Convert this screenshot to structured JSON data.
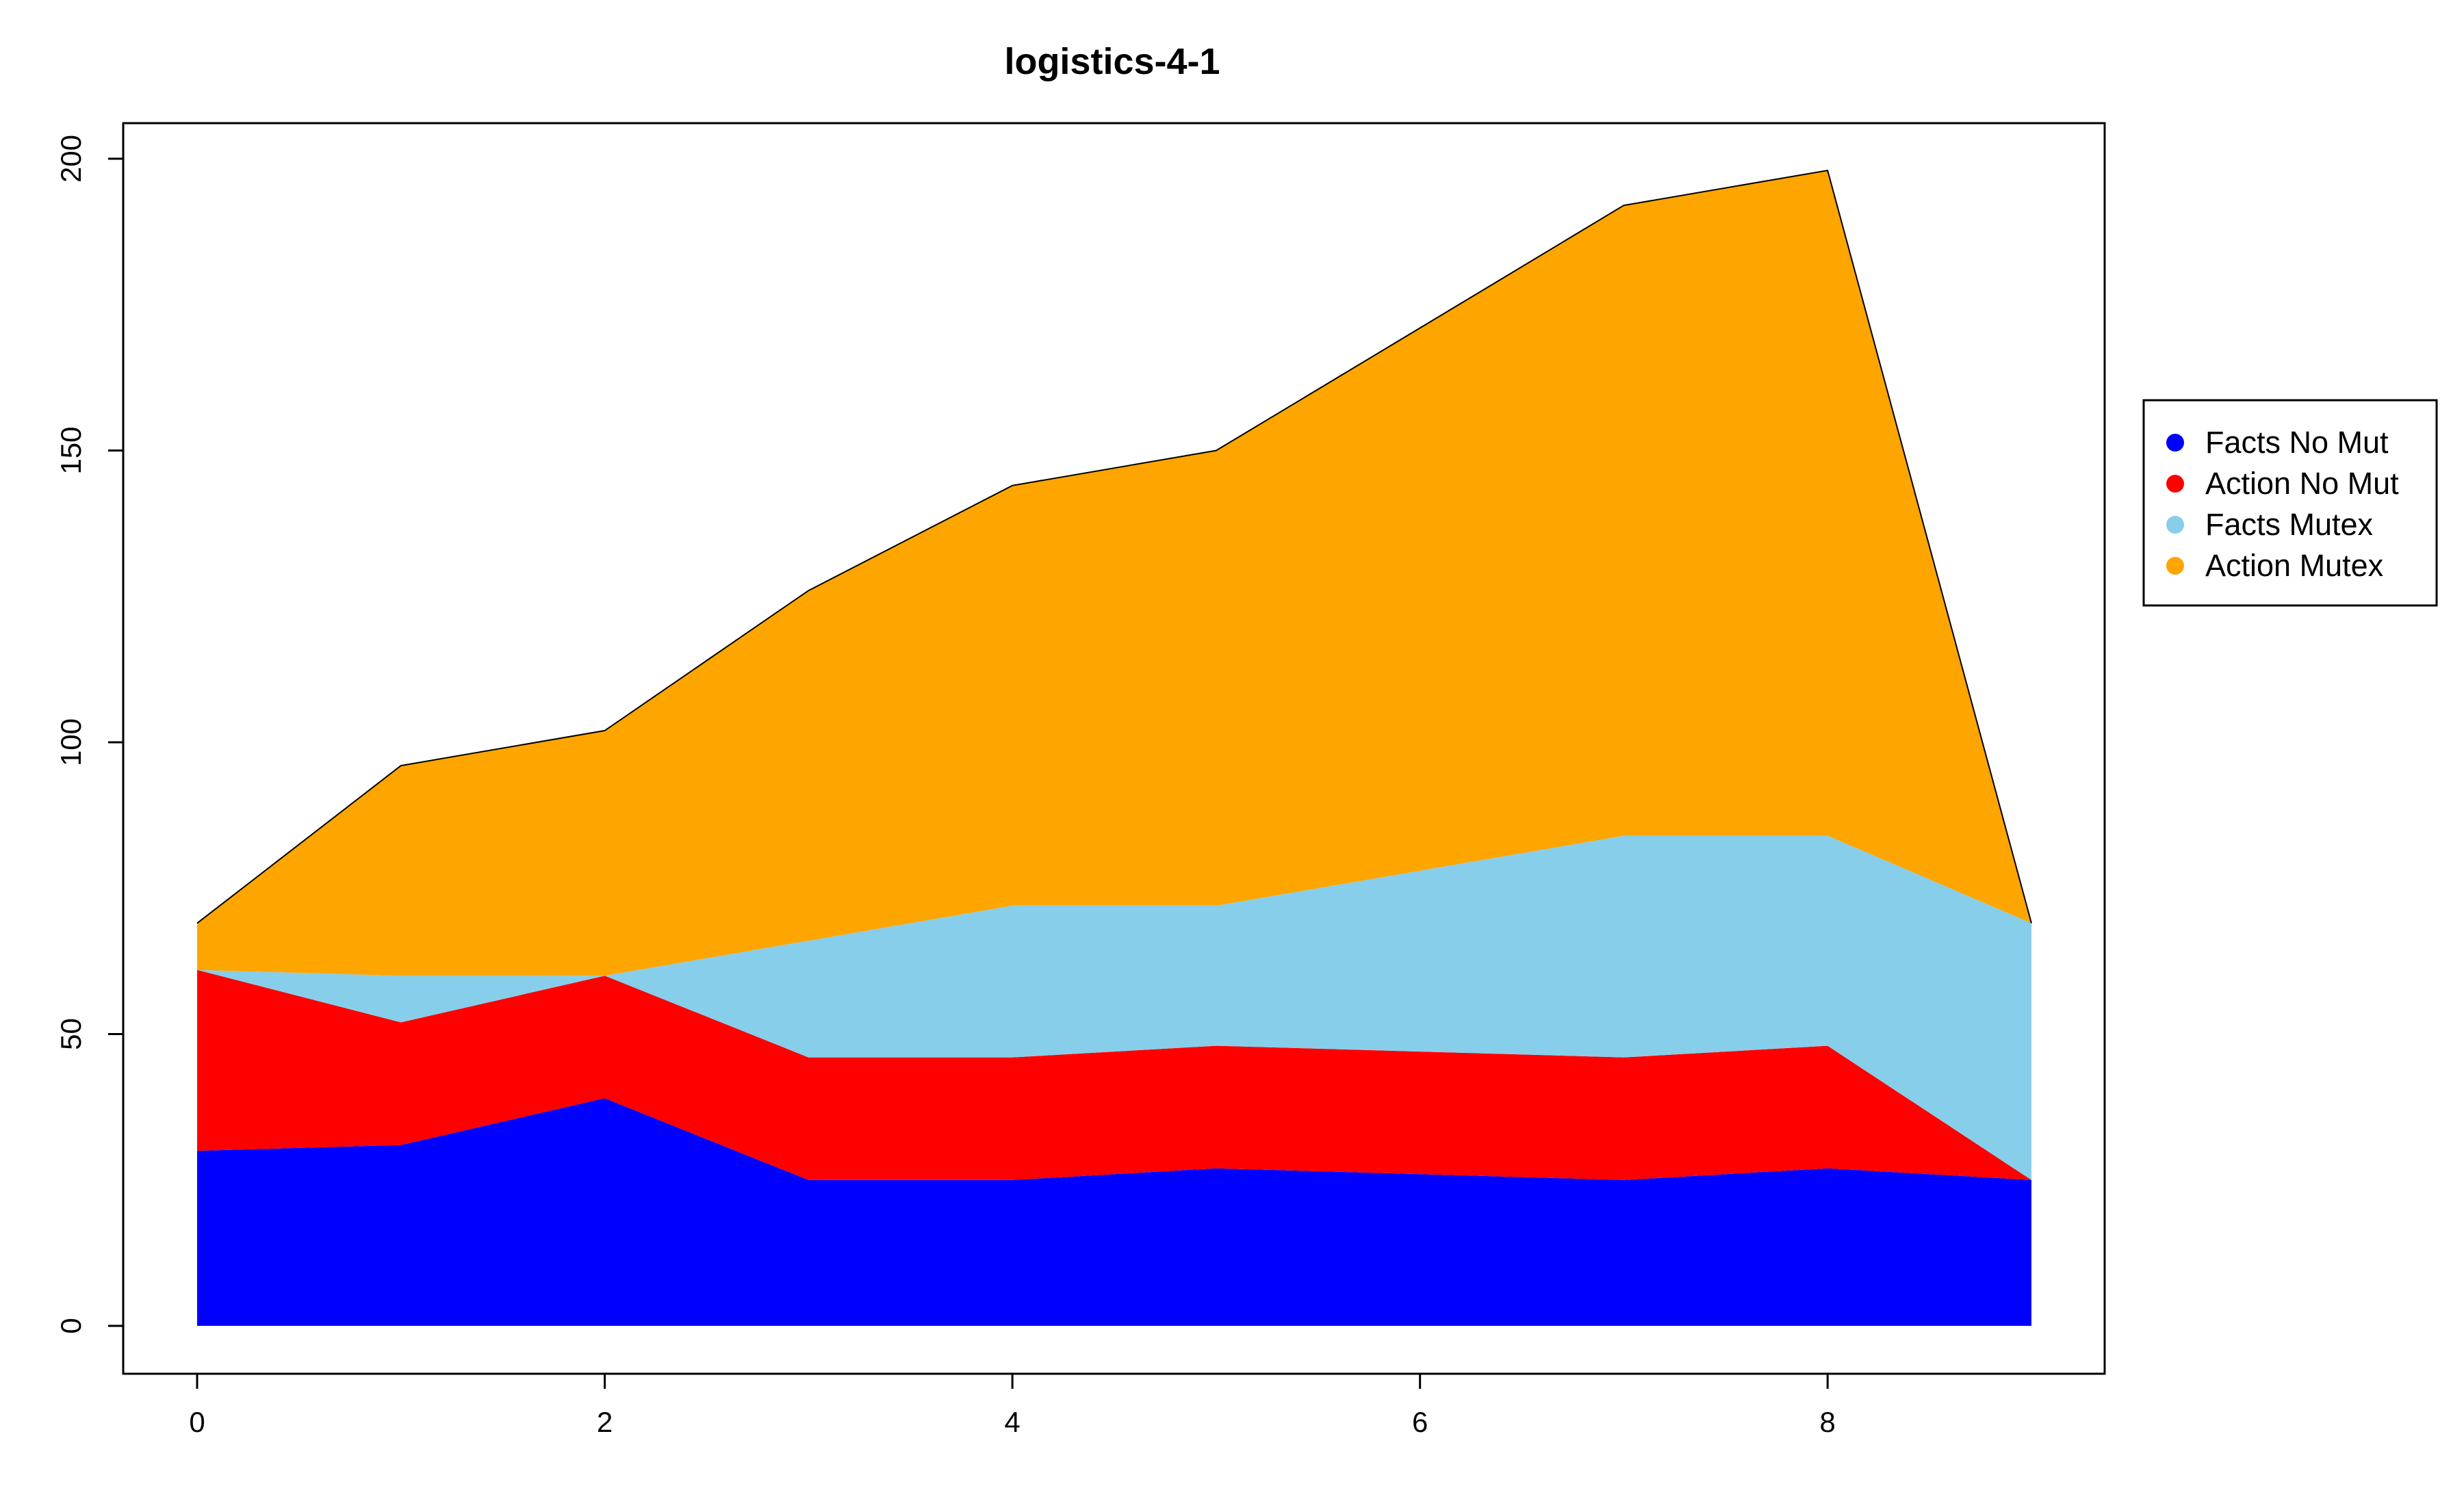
{
  "chart_data": {
    "type": "area",
    "title": "logistics-4-1",
    "xlabel": "",
    "ylabel": "",
    "stacked": true,
    "x": [
      0,
      1,
      2,
      3,
      4,
      5,
      6,
      7,
      8,
      9
    ],
    "xlim": [
      0,
      9
    ],
    "ylim": [
      0,
      200
    ],
    "x_ticks": [
      "0",
      "2",
      "4",
      "6",
      "8"
    ],
    "y_ticks": [
      "0",
      "50",
      "100",
      "150",
      "200"
    ],
    "grid": false,
    "legend_position": "right",
    "series": [
      {
        "name": "Facts No Mut",
        "color": "#0000ff",
        "values": [
          30,
          31,
          39,
          25,
          25,
          27,
          26,
          25,
          27,
          25
        ]
      },
      {
        "name": "Action No Mut",
        "color": "#ff0000",
        "values": [
          31,
          21,
          21,
          21,
          21,
          21,
          21,
          21,
          21,
          0
        ]
      },
      {
        "name": "Facts Mutex",
        "color": "#87ceeb",
        "values": [
          0,
          8,
          0,
          20,
          26,
          24,
          31,
          38,
          36,
          44
        ]
      },
      {
        "name": "Action Mutex",
        "color": "#ffa500",
        "values": [
          8,
          36,
          42,
          60,
          72,
          78,
          93,
          108,
          114,
          0
        ]
      }
    ]
  }
}
